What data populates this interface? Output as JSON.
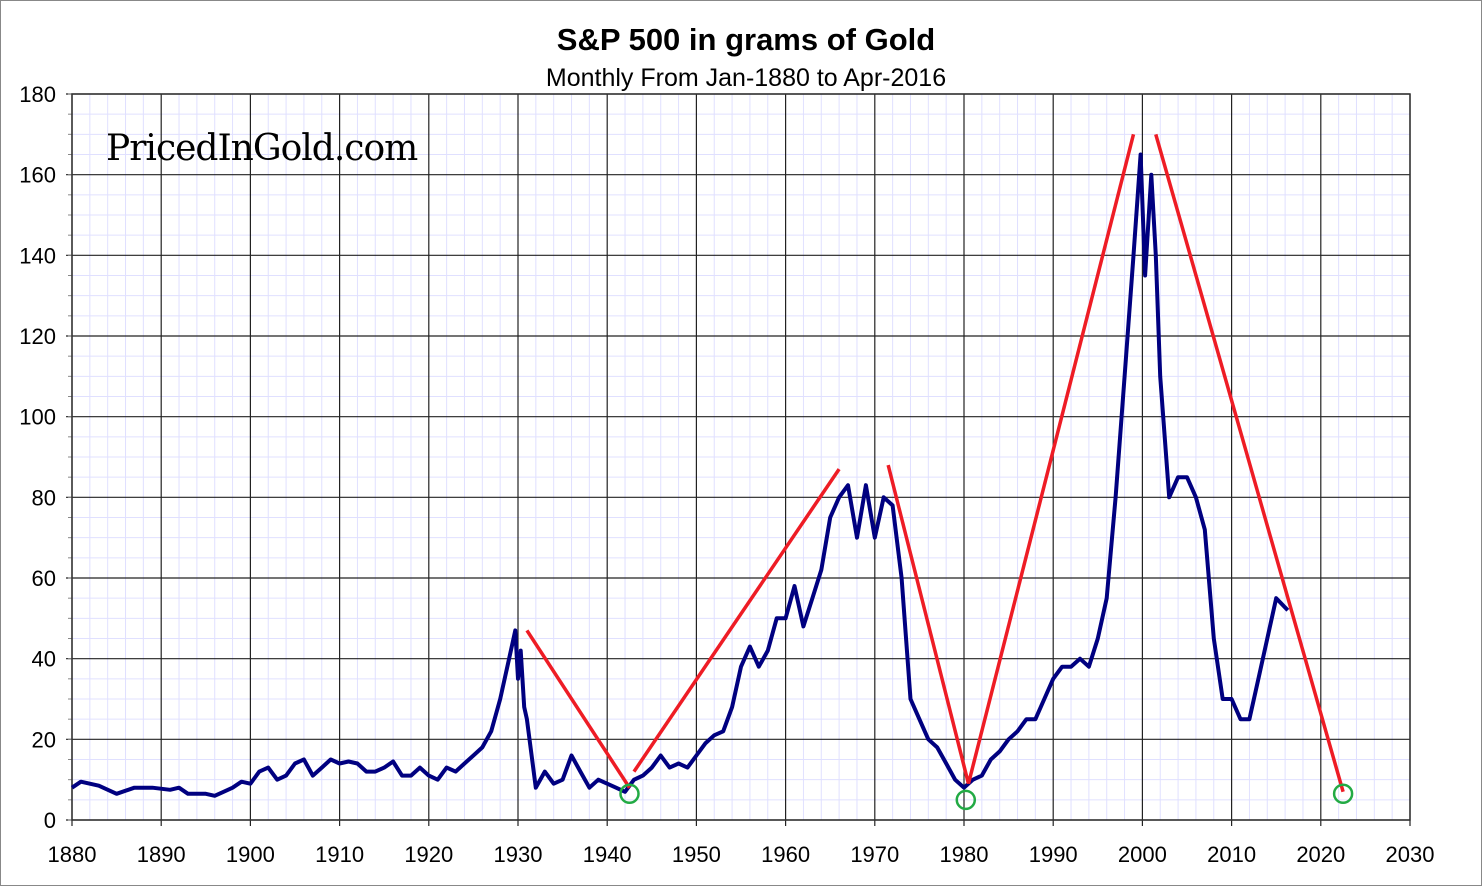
{
  "chart_data": {
    "type": "line",
    "title": "S&P 500 in grams of Gold",
    "subtitle": "Monthly From Jan-1880 to Apr-2016",
    "watermark": "PricedInGold.com",
    "xlabel": "",
    "ylabel": "",
    "xlim": [
      1880,
      2030
    ],
    "ylim": [
      0,
      180
    ],
    "x_ticks": [
      "1880",
      "1890",
      "1900",
      "1910",
      "1920",
      "1930",
      "1940",
      "1950",
      "1960",
      "1970",
      "1980",
      "1990",
      "2000",
      "2010",
      "2020",
      "2030"
    ],
    "y_ticks": [
      "0",
      "20",
      "40",
      "60",
      "80",
      "100",
      "120",
      "140",
      "160",
      "180"
    ],
    "grid": true,
    "legend": "none",
    "colors": {
      "series": "#000080",
      "trend": "#ee1c25",
      "markers": "#22aa44",
      "major_grid": "#000000",
      "minor_grid": "#e0e0ff"
    },
    "series": [
      {
        "x": [
          1880,
          1881,
          1883,
          1885,
          1887,
          1889,
          1891,
          1892,
          1893,
          1895,
          1896,
          1897,
          1898,
          1899,
          1900,
          1901,
          1902,
          1903,
          1904,
          1905,
          1906,
          1907,
          1908,
          1909,
          1910,
          1911,
          1912,
          1913,
          1914,
          1915,
          1916,
          1917,
          1918,
          1919,
          1920,
          1921,
          1922,
          1923,
          1924,
          1925,
          1926,
          1927,
          1928,
          1929,
          1929.7,
          1930,
          1930.3,
          1930.7,
          1931,
          1932,
          1933,
          1934,
          1935,
          1936,
          1937,
          1938,
          1939,
          1940,
          1941,
          1942,
          1943,
          1944,
          1945,
          1946,
          1947,
          1948,
          1949,
          1950,
          1951,
          1952,
          1953,
          1954,
          1955,
          1956,
          1957,
          1958,
          1959,
          1960,
          1961,
          1962,
          1963,
          1964,
          1965,
          1966,
          1967,
          1968,
          1969,
          1970,
          1971,
          1972,
          1973,
          1974,
          1975,
          1976,
          1977,
          1978,
          1979,
          1980,
          1981,
          1982,
          1983,
          1984,
          1985,
          1986,
          1987,
          1988,
          1989,
          1990,
          1991,
          1992,
          1993,
          1994,
          1995,
          1996,
          1997,
          1998,
          1999,
          1999.8,
          2000.3,
          2001,
          2001.5,
          2002,
          2003,
          2004,
          2005,
          2006,
          2007,
          2008,
          2009,
          2010,
          2011,
          2012,
          2013,
          2014,
          2015,
          2016.3
        ],
        "y": [
          8,
          9.5,
          8.5,
          6.5,
          8,
          8,
          7.5,
          8,
          6.5,
          6.5,
          6,
          7,
          8,
          9.5,
          9,
          12,
          13,
          10,
          11,
          14,
          15,
          11,
          13,
          15,
          14,
          14.5,
          14,
          12,
          12,
          13,
          14.5,
          11,
          11,
          13,
          11,
          10,
          13,
          12,
          14,
          16,
          18,
          22,
          30,
          40,
          47,
          35,
          42,
          28,
          25,
          8,
          12,
          9,
          10,
          16,
          12,
          8,
          10,
          9,
          8,
          7,
          10,
          11,
          13,
          16,
          13,
          14,
          13,
          16,
          19,
          21,
          22,
          28,
          38,
          43,
          38,
          42,
          50,
          50,
          58,
          48,
          55,
          62,
          75,
          80,
          83,
          70,
          83,
          70,
          80,
          78,
          60,
          30,
          25,
          20,
          18,
          14,
          10,
          8,
          10,
          11,
          15,
          17,
          20,
          22,
          25,
          25,
          30,
          35,
          38,
          38,
          40,
          38,
          45,
          55,
          80,
          110,
          140,
          165,
          135,
          160,
          140,
          110,
          80,
          85,
          85,
          80,
          72,
          45,
          30,
          30,
          25,
          25,
          35,
          45,
          55,
          52
        ]
      }
    ],
    "trend_lines": [
      {
        "from": [
          1931,
          47
        ],
        "to": [
          1942.5,
          8
        ]
      },
      {
        "from": [
          1943,
          12
        ],
        "to": [
          1966,
          87
        ]
      },
      {
        "from": [
          1971.5,
          88
        ],
        "to": [
          1980.5,
          9
        ]
      },
      {
        "from": [
          1980.5,
          9
        ],
        "to": [
          1999,
          170
        ]
      },
      {
        "from": [
          2001.5,
          170
        ],
        "to": [
          2022.5,
          7
        ]
      }
    ],
    "bottom_markers": [
      {
        "x": 1942.5,
        "y": 6.5
      },
      {
        "x": 1980.2,
        "y": 5
      },
      {
        "x": 2022.5,
        "y": 6.5
      }
    ]
  }
}
